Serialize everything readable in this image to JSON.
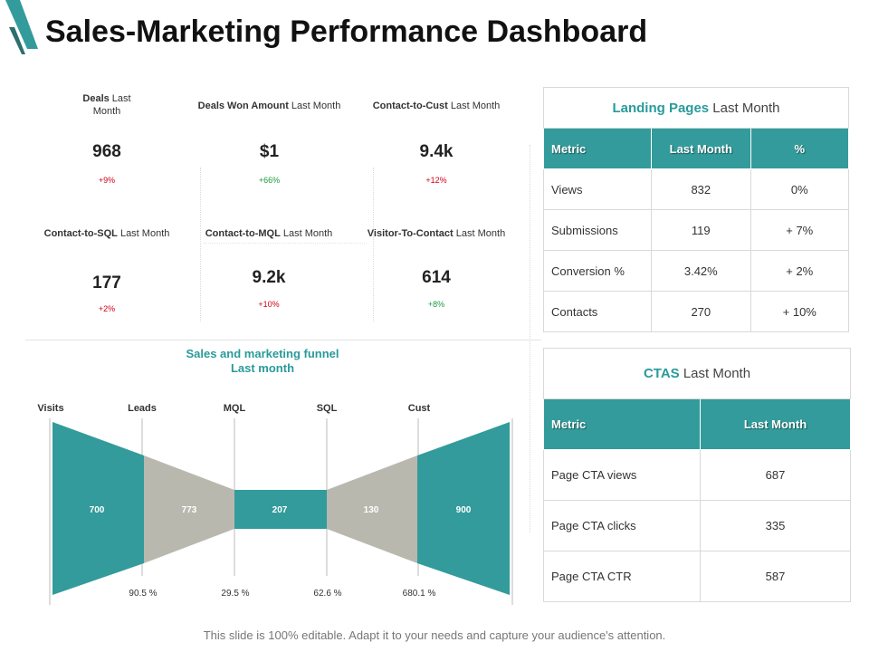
{
  "header": {
    "title": "Sales-Marketing Performance Dashboard"
  },
  "colors": {
    "accent": "#339b9b",
    "neutral": "#b9b8ae",
    "negative": "#d0021b",
    "positive": "#1b9a3a"
  },
  "kpis": [
    {
      "label_bold": "Deals",
      "label_rest": " Last Month",
      "value": "968",
      "change": "+9%",
      "trend": "negative"
    },
    {
      "label_bold": "Deals Won Amount",
      "label_rest": " Last Month",
      "value": "$1",
      "change": "+66%",
      "trend": "positive"
    },
    {
      "label_bold": "Contact-to-Cust",
      "label_rest": " Last Month",
      "value": "9.4k",
      "change": "+12%",
      "trend": "negative"
    },
    {
      "label_bold": "Contact-to-SQL",
      "label_rest": " Last Month",
      "value": "177",
      "change": "+2%",
      "trend": "negative"
    },
    {
      "label_bold": "Contact-to-MQL",
      "label_rest": " Last Month",
      "value": "9.2k",
      "change": "+10%",
      "trend": "negative"
    },
    {
      "label_bold": "Visitor-To-Contact",
      "label_rest": " Last Month",
      "value": "614",
      "change": "+8%",
      "trend": "positive"
    }
  ],
  "funnel": {
    "title_line1": "Sales and marketing funnel",
    "title_line2": "Last month",
    "stages": [
      "Visits",
      "Leads",
      "MQL",
      "SQL",
      "Cust"
    ],
    "values": [
      "700",
      "773",
      "207",
      "130",
      "900"
    ],
    "percentages": [
      "90.5 %",
      "29.5 %",
      "62.6 %",
      "680.1 %"
    ]
  },
  "landing_pages": {
    "title_bold": "Landing Pages",
    "title_rest": " Last Month",
    "headers": [
      "Metric",
      "Last Month",
      "%"
    ],
    "rows": [
      {
        "metric": "Views",
        "value": "832",
        "pct": "0%",
        "trend": "none"
      },
      {
        "metric": "Submissions",
        "value": "119",
        "pct": "+ 7%",
        "trend": "positive"
      },
      {
        "metric": "Conversion %",
        "value": "3.42%",
        "pct": "+ 2%",
        "trend": "positive"
      },
      {
        "metric": "Contacts",
        "value": "270",
        "pct": "+ 10%",
        "trend": "negative"
      }
    ]
  },
  "ctas": {
    "title_bold": "CTAS",
    "title_rest": " Last Month",
    "headers": [
      "Metric",
      "Last Month"
    ],
    "rows": [
      {
        "metric": "Page CTA views",
        "value": "687"
      },
      {
        "metric": "Page CTA clicks",
        "value": "335"
      },
      {
        "metric": "Page CTA CTR",
        "value": "587"
      }
    ]
  },
  "footer": {
    "note": "This slide is 100% editable. Adapt it to your needs and capture your audience's attention."
  }
}
